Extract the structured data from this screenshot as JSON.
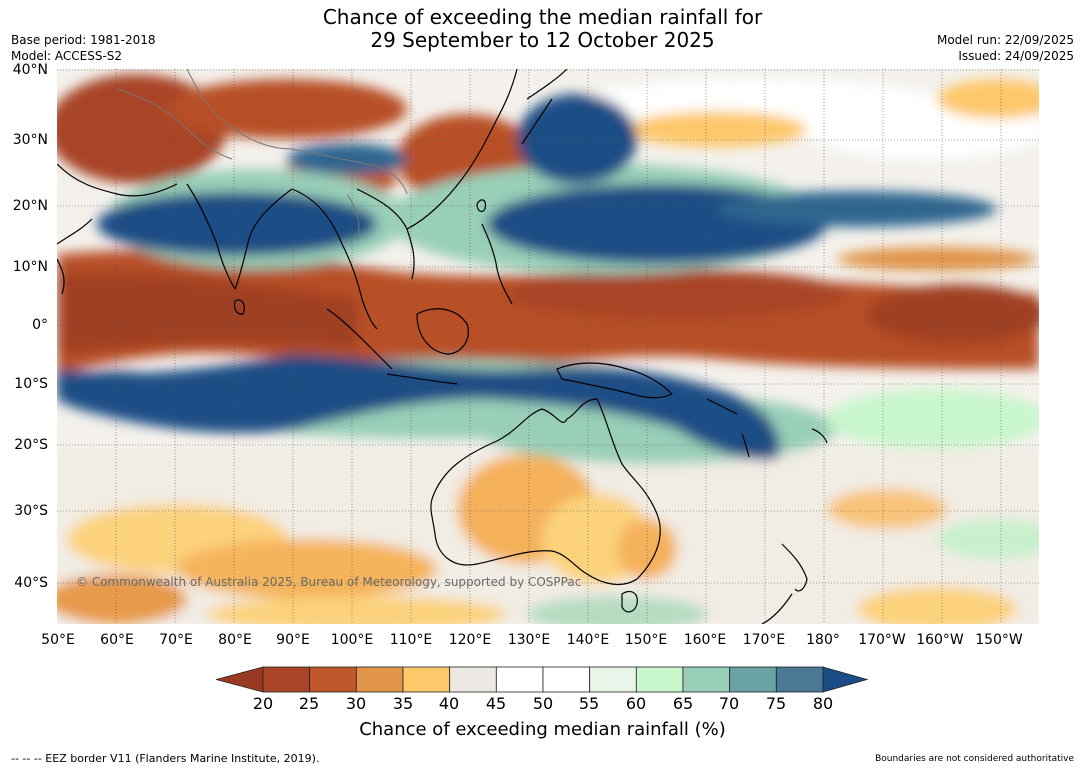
{
  "header": {
    "title_line1": "Chance of exceeding the median rainfall for",
    "title_line2": "29 September to 12 October 2025",
    "base_period": "Base period: 1981-2018",
    "model": "Model: ACCESS-S2",
    "model_run": "Model run: 22/09/2025",
    "issued": "Issued: 24/09/2025"
  },
  "map": {
    "lat_labels": [
      "40°N",
      "30°N",
      "20°N",
      "10°N",
      "0°",
      "10°S",
      "20°S",
      "30°S",
      "40°S"
    ],
    "lon_labels": [
      "50°E",
      "60°E",
      "70°E",
      "80°E",
      "90°E",
      "100°E",
      "110°E",
      "120°E",
      "130°E",
      "140°E",
      "150°E",
      "160°E",
      "170°E",
      "180°",
      "170°W",
      "160°W",
      "150°W"
    ],
    "copyright": "© Commonwealth of Australia 2025, Bureau of Meteorology, supported by COSPPac"
  },
  "colorbar": {
    "ticks": [
      "20",
      "25",
      "30",
      "35",
      "40",
      "45",
      "50",
      "55",
      "60",
      "65",
      "70",
      "75",
      "80"
    ],
    "colors": [
      "#a94526",
      "#c0572d",
      "#e09548",
      "#fdc86a",
      "#ece9e4",
      "#ffffff",
      "#ffffff",
      "#e9f5e9",
      "#c8f7cc",
      "#99cfb8",
      "#6aa3a5",
      "#4a7895"
    ],
    "under_color": "#9a3a22",
    "over_color": "#1a4d85",
    "label": "Chance of exceeding median rainfall (%)"
  },
  "footer": {
    "eez_note": "--  --  -- EEZ border V11 (Flanders Marine Institute, 2019).",
    "boundaries_note": "Boundaries are not considered authoritative"
  }
}
